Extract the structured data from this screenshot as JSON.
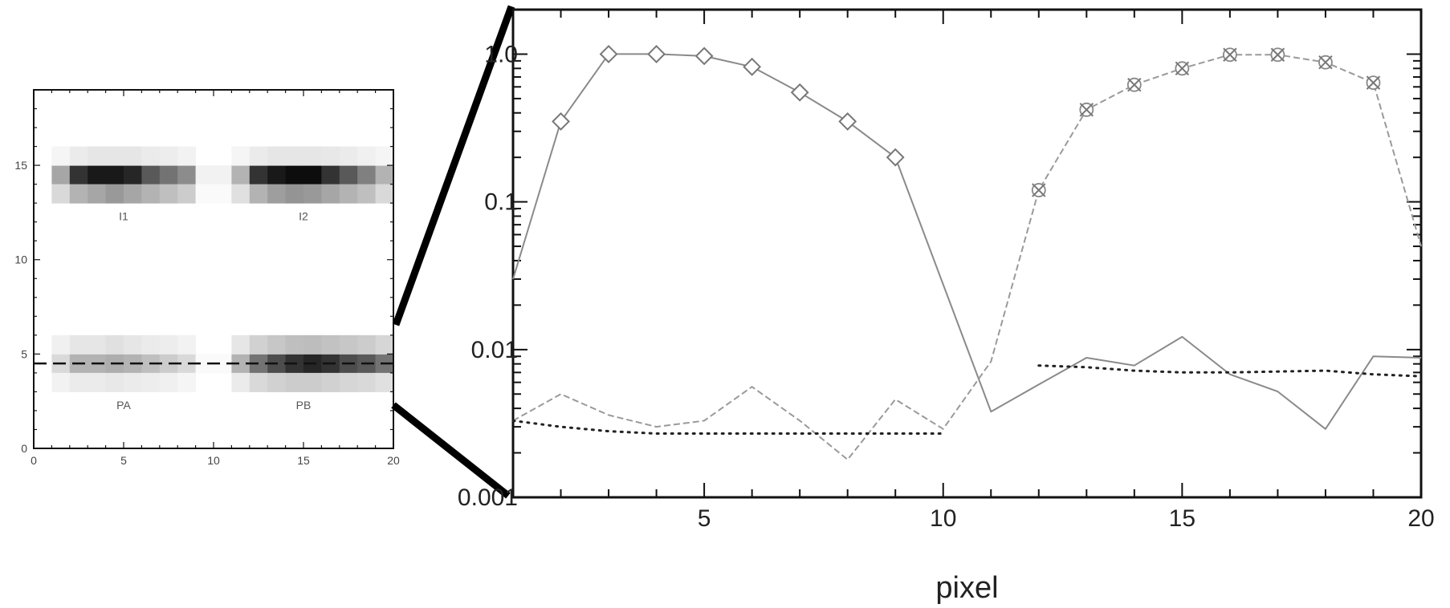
{
  "chart_data": [
    {
      "type": "heatmap",
      "xlim": [
        0,
        20
      ],
      "ylim": [
        0,
        19
      ],
      "xticks": [
        "0",
        "5",
        "10",
        "15",
        "20"
      ],
      "yticks": [
        "0",
        "5",
        "10",
        "15"
      ],
      "region_labels": [
        {
          "text": "I1",
          "x": 5,
          "y": 12.3
        },
        {
          "text": "I2",
          "x": 15,
          "y": 12.3
        },
        {
          "text": "PA",
          "x": 5,
          "y": 2.3
        },
        {
          "text": "PB",
          "x": 15,
          "y": 2.3
        }
      ],
      "rows": [
        {
          "y": 14.5,
          "values": [
            0.0,
            0.35,
            0.8,
            0.9,
            0.9,
            0.85,
            0.65,
            0.55,
            0.45,
            0.05,
            0.05,
            0.3,
            0.8,
            0.9,
            0.95,
            0.95,
            0.8,
            0.65,
            0.5,
            0.3
          ]
        },
        {
          "y": 13.5,
          "values": [
            0.0,
            0.15,
            0.3,
            0.35,
            0.4,
            0.35,
            0.3,
            0.25,
            0.2,
            0.02,
            0.02,
            0.12,
            0.3,
            0.38,
            0.42,
            0.4,
            0.35,
            0.3,
            0.25,
            0.15
          ]
        },
        {
          "y": 15.5,
          "values": [
            0.0,
            0.04,
            0.08,
            0.1,
            0.1,
            0.1,
            0.08,
            0.07,
            0.05,
            0.0,
            0.0,
            0.04,
            0.08,
            0.1,
            0.1,
            0.1,
            0.09,
            0.08,
            0.06,
            0.04
          ]
        },
        {
          "y": 4.5,
          "values": [
            0.0,
            0.15,
            0.3,
            0.3,
            0.32,
            0.3,
            0.25,
            0.2,
            0.15,
            0.02,
            0.02,
            0.3,
            0.55,
            0.7,
            0.8,
            0.85,
            0.8,
            0.7,
            0.65,
            0.55
          ]
        },
        {
          "y": 5.5,
          "values": [
            0.0,
            0.06,
            0.1,
            0.1,
            0.12,
            0.1,
            0.08,
            0.07,
            0.05,
            0.0,
            0.0,
            0.1,
            0.18,
            0.22,
            0.25,
            0.26,
            0.24,
            0.22,
            0.2,
            0.16
          ]
        },
        {
          "y": 3.5,
          "values": [
            0.0,
            0.05,
            0.08,
            0.08,
            0.09,
            0.08,
            0.07,
            0.06,
            0.04,
            0.0,
            0.0,
            0.08,
            0.15,
            0.18,
            0.2,
            0.2,
            0.18,
            0.16,
            0.15,
            0.12
          ]
        }
      ],
      "guide_line_y": 4.5
    },
    {
      "type": "line",
      "xlabel": "pixel",
      "xlim": [
        1,
        20
      ],
      "ylim": [
        0.001,
        2.0
      ],
      "yscale": "log",
      "xticks": [
        "5",
        "10",
        "15",
        "20"
      ],
      "yticks": [
        {
          "value": 1.0,
          "label": "1.0"
        },
        {
          "value": 0.1,
          "label": "0.1"
        },
        {
          "value": 0.01,
          "label": "0.01"
        },
        {
          "value": 0.001,
          "label": "0.001"
        }
      ],
      "grid": false,
      "series": [
        {
          "style": "solid-diamond",
          "x": [
            1,
            2,
            3,
            4,
            5,
            6,
            7,
            8,
            9,
            11,
            12,
            13,
            14,
            15,
            16,
            17,
            18,
            19,
            20
          ],
          "y": [
            0.03,
            0.35,
            1.0,
            1.0,
            0.97,
            0.82,
            0.55,
            0.35,
            0.2,
            0.0038,
            0.0058,
            0.0088,
            0.0078,
            0.0122,
            0.0068,
            0.0052,
            0.0029,
            0.009,
            0.0088
          ],
          "markers": [
            2,
            3,
            4,
            5,
            6,
            7,
            8,
            9
          ]
        },
        {
          "style": "dashed-cross",
          "x": [
            1,
            2,
            3,
            4,
            5,
            6,
            7,
            8,
            9,
            10,
            11,
            12,
            13,
            14,
            15,
            16,
            17,
            18,
            19,
            20
          ],
          "y": [
            0.0033,
            0.005,
            0.0036,
            0.003,
            0.0033,
            0.0056,
            0.0033,
            0.0018,
            0.0046,
            0.0029,
            0.0083,
            0.12,
            0.42,
            0.62,
            0.8,
            0.99,
            0.99,
            0.88,
            0.64,
            0.05
          ],
          "markers": [
            12,
            13,
            14,
            15,
            16,
            17,
            18,
            19
          ]
        },
        {
          "style": "dotted",
          "x": [
            1,
            2,
            3,
            4,
            5,
            6,
            7,
            8,
            9,
            10
          ],
          "y": [
            0.0033,
            0.003,
            0.0028,
            0.0027,
            0.0027,
            0.0027,
            0.0027,
            0.0027,
            0.0027,
            0.0027
          ]
        },
        {
          "style": "dotted",
          "x": [
            12,
            13,
            14,
            15,
            16,
            17,
            18,
            19,
            20
          ],
          "y": [
            0.0078,
            0.0076,
            0.0072,
            0.007,
            0.007,
            0.0071,
            0.0072,
            0.0068,
            0.0066
          ]
        }
      ]
    }
  ]
}
